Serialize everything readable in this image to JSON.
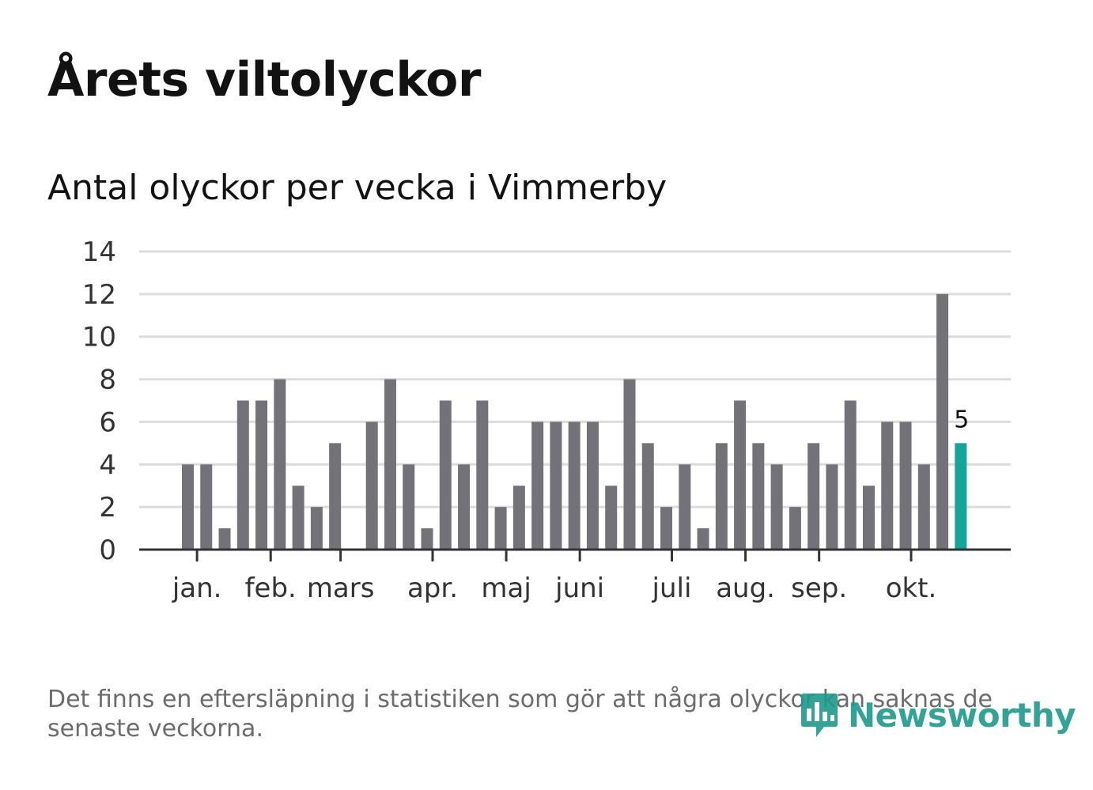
{
  "header": {
    "title": "Årets viltolyckor",
    "subtitle": "Antal olyckor per vecka i Vimmerby"
  },
  "footnote": "Det finns en eftersläpning i statistiken som gör att några olyckor kan saknas de senaste veckorna.",
  "brand": {
    "name": "Newsworthy",
    "icon": "newsworthy-logo-icon",
    "color": "#1e9a8c"
  },
  "colors": {
    "bar": "#737278",
    "highlight": "#16a398",
    "grid": "#dcdcdc",
    "axis": "#333333"
  },
  "chart_data": {
    "type": "bar",
    "title": "Antal olyckor per vecka i Vimmerby",
    "xlabel": "",
    "ylabel": "",
    "ylim": [
      0,
      14
    ],
    "yticks": [
      0,
      2,
      4,
      6,
      8,
      10,
      12,
      14
    ],
    "grid": true,
    "weeks": [
      1,
      2,
      3,
      4,
      5,
      6,
      7,
      8,
      9,
      10,
      11,
      12,
      13,
      14,
      15,
      16,
      17,
      18,
      19,
      20,
      21,
      22,
      23,
      24,
      25,
      26,
      27,
      28,
      29,
      30,
      31,
      32,
      33,
      34,
      35,
      36,
      37,
      38,
      39,
      40,
      41,
      42,
      43
    ],
    "values": [
      4,
      4,
      1,
      7,
      7,
      8,
      3,
      2,
      5,
      0,
      6,
      8,
      4,
      1,
      7,
      4,
      7,
      2,
      3,
      6,
      6,
      6,
      6,
      3,
      8,
      5,
      2,
      4,
      1,
      5,
      7,
      5,
      4,
      2,
      5,
      4,
      7,
      3,
      6,
      6,
      4,
      12,
      5
    ],
    "highlight_index": 42,
    "highlight_label": "5",
    "month_ticks": [
      {
        "label": "jan.",
        "week": 1.5
      },
      {
        "label": "feb.",
        "week": 5.5
      },
      {
        "label": "mars",
        "week": 9.3
      },
      {
        "label": "apr.",
        "week": 14.3
      },
      {
        "label": "maj",
        "week": 18.3
      },
      {
        "label": "juni",
        "week": 22.3
      },
      {
        "label": "juli",
        "week": 27.3
      },
      {
        "label": "aug.",
        "week": 31.3
      },
      {
        "label": "sep.",
        "week": 35.3
      },
      {
        "label": "okt.",
        "week": 40.3
      }
    ]
  }
}
